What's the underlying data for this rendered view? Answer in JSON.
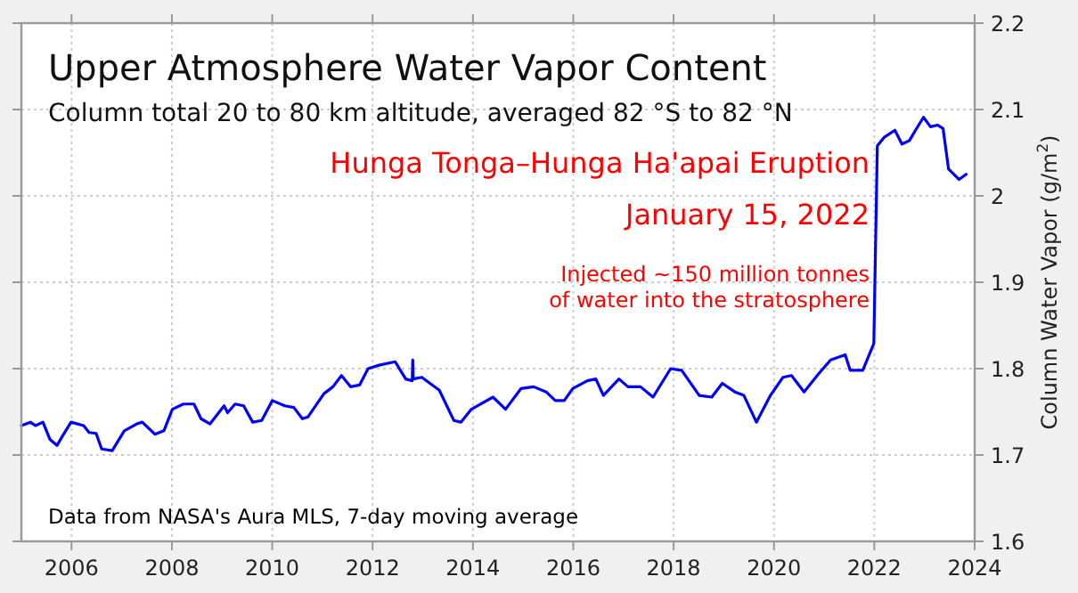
{
  "chart_data": {
    "type": "line",
    "title": "Upper Atmosphere Water Vapor Content",
    "subtitle": "Column total 20 to 80 km altitude, averaged 82 °S to 82 °N",
    "ylabel": "Column Water Vapor (g/m$^{2}$)",
    "annotations": [
      "Hunga Tonga–Hunga Ha'apai Eruption",
      "January 15, 2022",
      "Injected ~150 million tonnes\nof water into the stratosphere",
      "Data from NASA's Aura MLS, 7-day moving average"
    ],
    "xlim": [
      2005,
      2024
    ],
    "xticks": [
      2006,
      2008,
      2010,
      2012,
      2014,
      2016,
      2018,
      2020,
      2022,
      2024
    ],
    "ylim": [
      1.6,
      2.2
    ],
    "yticks": [
      1.6,
      1.7,
      1.8,
      1.9,
      2,
      2.1,
      2.2
    ],
    "grid": true,
    "series": [
      {
        "color": "#0000ff",
        "x": [
          2005.0,
          2005.18,
          2005.28,
          2005.43,
          2005.57,
          2005.71,
          2005.82,
          2005.99,
          2006.24,
          2006.35,
          2006.49,
          2006.6,
          2006.81,
          2007.05,
          2007.3,
          2007.41,
          2007.66,
          2007.84,
          2008.01,
          2008.23,
          2008.44,
          2008.58,
          2008.76,
          2009.04,
          2009.11,
          2009.26,
          2009.43,
          2009.61,
          2009.79,
          2010.0,
          2010.25,
          2010.43,
          2010.6,
          2010.71,
          2011.03,
          2011.21,
          2011.38,
          2011.56,
          2011.74,
          2011.91,
          2012.13,
          2012.45,
          2012.66,
          2012.79,
          2012.8,
          2012.81,
          2012.98,
          2013.33,
          2013.62,
          2013.76,
          2013.97,
          2014.15,
          2014.4,
          2014.65,
          2014.96,
          2015.21,
          2015.46,
          2015.64,
          2015.82,
          2015.99,
          2016.28,
          2016.45,
          2016.6,
          2016.91,
          2017.09,
          2017.34,
          2017.59,
          2017.94,
          2018.16,
          2018.51,
          2018.76,
          2018.97,
          2019.22,
          2019.4,
          2019.65,
          2019.93,
          2020.18,
          2020.35,
          2020.6,
          2020.89,
          2021.13,
          2021.42,
          2021.52,
          2021.77,
          2021.99,
          2022.06,
          2022.2,
          2022.41,
          2022.55,
          2022.7,
          2022.8,
          2022.98,
          2023.12,
          2023.26,
          2023.37,
          2023.48,
          2023.69,
          2023.83
        ],
        "values": [
          1.734,
          1.738,
          1.734,
          1.738,
          1.718,
          1.711,
          1.722,
          1.738,
          1.734,
          1.726,
          1.725,
          1.707,
          1.705,
          1.728,
          1.736,
          1.738,
          1.724,
          1.728,
          1.753,
          1.759,
          1.759,
          1.742,
          1.736,
          1.757,
          1.749,
          1.759,
          1.757,
          1.738,
          1.74,
          1.763,
          1.757,
          1.755,
          1.742,
          1.744,
          1.771,
          1.779,
          1.792,
          1.779,
          1.781,
          1.8,
          1.804,
          1.808,
          1.788,
          1.786,
          1.81,
          1.788,
          1.79,
          1.775,
          1.74,
          1.738,
          1.753,
          1.759,
          1.767,
          1.753,
          1.777,
          1.779,
          1.773,
          1.763,
          1.763,
          1.777,
          1.786,
          1.788,
          1.769,
          1.788,
          1.779,
          1.779,
          1.767,
          1.8,
          1.798,
          1.769,
          1.767,
          1.783,
          1.773,
          1.769,
          1.738,
          1.769,
          1.79,
          1.792,
          1.773,
          1.794,
          1.81,
          1.816,
          1.798,
          1.798,
          1.829,
          2.058,
          2.068,
          2.076,
          2.06,
          2.064,
          2.074,
          2.091,
          2.08,
          2.082,
          2.078,
          2.031,
          2.019,
          2.025
        ]
      }
    ]
  }
}
